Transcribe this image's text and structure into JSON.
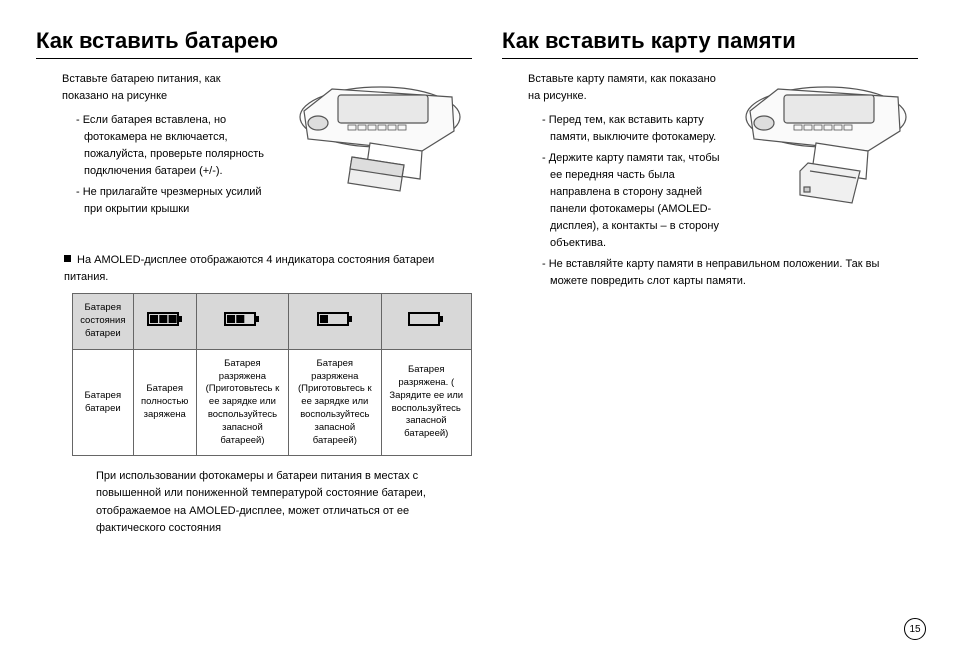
{
  "page_number": "15",
  "battery": {
    "heading": "Как вставить батарею",
    "intro1": "Вставьте батарею питания, как",
    "intro2": "показано на рисунке",
    "bullets": [
      "- Если батарея вставлена, но фотокамера не включается, пожалуйста, проверьте полярность подключения батареи (+/-).",
      "- Не прилагайте чрезмерных усилий при окрытии крышки"
    ],
    "table_intro": "На AMOLED-дисплее отображаются 4 индикатора состояния батареи питания.",
    "table": {
      "row1_label": "Батарея состояния батареи",
      "row2_label": "Батарея батареи",
      "cells": [
        "Батарея полностью заряжена",
        "Батарея разряжена (Приготовьтесь к ее зарядке или воспользуйтесь запасной батареей)",
        "Батарея разряжена (Приготовьтесь к ее зарядке или воспользуйтесь запасной батареей)",
        "Батарея разряжена. ( Зарядите ее или воспользуйтесь запасной батареей)"
      ],
      "levels": [
        3,
        2,
        1,
        0
      ]
    },
    "footnote": "При использовании фотокамеры и батареи питания в местах с повышенной или пониженной температурой состояние батареи, отображаемое на AMOLED-дисплее, может отличаться от ее фактического состояния"
  },
  "memcard": {
    "heading": "Как вставить карту памяти",
    "intro1": "Вставьте карту памяти, как показано",
    "intro2": "на рисунке.",
    "bullets": [
      "- Перед тем, как вставить карту памяти, выключите фотокамеру.",
      "- Держите карту памяти так, чтобы ее передняя часть была направлена в сторону задней панели фотокамеры (AMOLED-дисплея), а контакты – в сторону объектива."
    ],
    "bullets_after": [
      "- Не вставляйте карту памяти в неправильном положении. Так вы можете повредить слот карты памяти."
    ]
  },
  "style": {
    "battery_fill": "#000",
    "battery_stroke": "#000",
    "device_stroke": "#444"
  }
}
